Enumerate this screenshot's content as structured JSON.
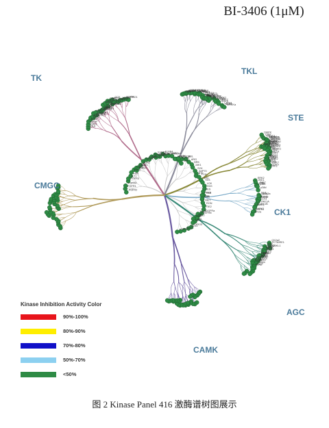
{
  "title": "BI-3406 (1μM)",
  "caption": "图 2   Kinase Panel 416 激酶谱树图展示",
  "groups": [
    {
      "name": "TK",
      "color": "#b06a8a"
    },
    {
      "name": "TKL",
      "color": "#8a8a9a"
    },
    {
      "name": "STE",
      "color": "#8a8a3a"
    },
    {
      "name": "CK1",
      "color": "#7aaac8"
    },
    {
      "name": "AGC",
      "color": "#3a8a78"
    },
    {
      "name": "CAMK",
      "color": "#6a5aa0"
    },
    {
      "name": "CMGC",
      "color": "#b09a5a"
    }
  ],
  "legend": {
    "title": "Kinase Inhibition Activity Color",
    "items": [
      {
        "label": "90%-100%",
        "color": "#e8141b"
      },
      {
        "label": "80%-90%",
        "color": "#ffee00"
      },
      {
        "label": "70%-80%",
        "color": "#1010c8"
      },
      {
        "label": "50%-70%",
        "color": "#8cd0f0"
      },
      {
        "label": "<50%",
        "color": "#2e8b45"
      }
    ]
  },
  "node_color": "#2e8b45",
  "kinase_labels": [
    "FGFR2",
    "FGFR1",
    "FGFR4",
    "FGFR3",
    "FLT1",
    "KDR",
    "TRKC",
    "TRKB",
    "TRKA",
    "MUSK",
    "DDR1",
    "DDR2",
    "EphA1",
    "EphA2",
    "EphA3",
    "EphA4",
    "EphA5",
    "EphB1",
    "EphB2",
    "EphB3",
    "EphB4",
    "EGFR",
    "HER2",
    "HER4",
    "INSR",
    "IGF1R",
    "IRR",
    "ALK",
    "LTK",
    "ROS",
    "ABL",
    "ARG",
    "BRK",
    "JAK1",
    "SYK",
    "ZAP70",
    "BTK",
    "FYN",
    "SRC",
    "YES",
    "LCK",
    "HCK",
    "FES",
    "FER",
    "CSK",
    "PYK2",
    "FAK",
    "MET",
    "RON",
    "TIE2",
    "PDGFRa",
    "PDGFRb",
    "KIT",
    "FMS",
    "FLT3",
    "RET",
    "AXL",
    "MER",
    "TYRO3",
    "MLK3",
    "MLK1",
    "TAK1",
    "LZK",
    "DLK",
    "RAF1",
    "BRAF",
    "ARAF",
    "KSR1",
    "ALK4",
    "BMPR2",
    "ACTR2",
    "ACVR1",
    "TGFBR2",
    "MLKL",
    "LIMK1",
    "LIMK2",
    "IRAK4",
    "RIPK1",
    "RIPK2",
    "MAP3K1",
    "MAP3K5",
    "MAP3K7",
    "MEK1",
    "MEK2",
    "MEK4",
    "MEK7",
    "PAK1",
    "PAK4",
    "HPK1",
    "GCK",
    "KHS1",
    "MST1",
    "MST2",
    "MST3",
    "MST4",
    "YSK4",
    "SLK",
    "LOK",
    "TAO1",
    "TAO2",
    "NEK4",
    "OSR1",
    "CK1a",
    "CK1d",
    "CK1e",
    "CK1g1",
    "CK1g2",
    "TTBK1",
    "TTBK2",
    "VRK1",
    "VRK2",
    "Vrk3",
    "PKACa",
    "PKG1",
    "PKCa",
    "PKCb",
    "PKCd",
    "PKCe",
    "PKCq",
    "PRKD1",
    "ROCK1",
    "ROCK2",
    "AKT1",
    "AKT2",
    "AKT3",
    "SGK1",
    "S6K",
    "RSK1",
    "RSK2",
    "PDK1",
    "GRK2",
    "GRK5",
    "LATS1",
    "NDR1",
    "MRCKa",
    "DMPK",
    "CRIK",
    "MAST1",
    "CAMK1a",
    "CAMK2a",
    "CAMK2b",
    "CAMK4",
    "DAPK1",
    "DAPK2",
    "MLCK",
    "AMPKa1",
    "AMPKa2",
    "BRSK1",
    "MARK1",
    "MARK2",
    "MARK3",
    "MARK4",
    "NUAK1",
    "SIK",
    "CHK1",
    "CHK2",
    "PIM1",
    "PIM2",
    "MELK",
    "TSSK1",
    "TSSK2",
    "PHKg1",
    "Trio",
    "CDK1",
    "CDK2",
    "CDK4",
    "CDK5",
    "CDK6",
    "CDK7",
    "CDK9",
    "ERK1",
    "ERK2",
    "JNK1",
    "JNK2",
    "p38a",
    "p38b",
    "p38d",
    "NLK",
    "GSK3a",
    "GSK3b",
    "CLK1",
    "CLK2",
    "CLK3",
    "DYRK1A",
    "DYRK1B",
    "HIPK1",
    "HIPK2",
    "SRPK1",
    "CK2a",
    "CK2a2",
    "PCTAIRE1",
    "CDKL1",
    "MAK",
    "PRKR",
    "RSK4",
    "AAK1",
    "ULK1",
    "ULK2",
    "ULK3",
    "IKKa",
    "IKKb",
    "TBK1",
    "IRE1",
    "NEK1",
    "NEK2",
    "NEK6",
    "NEK9",
    "PLK1",
    "PLK3",
    "PLK4",
    "TTK",
    "BUB1",
    "WEE1",
    "Haspin",
    "CDC7",
    "GCN2"
  ]
}
